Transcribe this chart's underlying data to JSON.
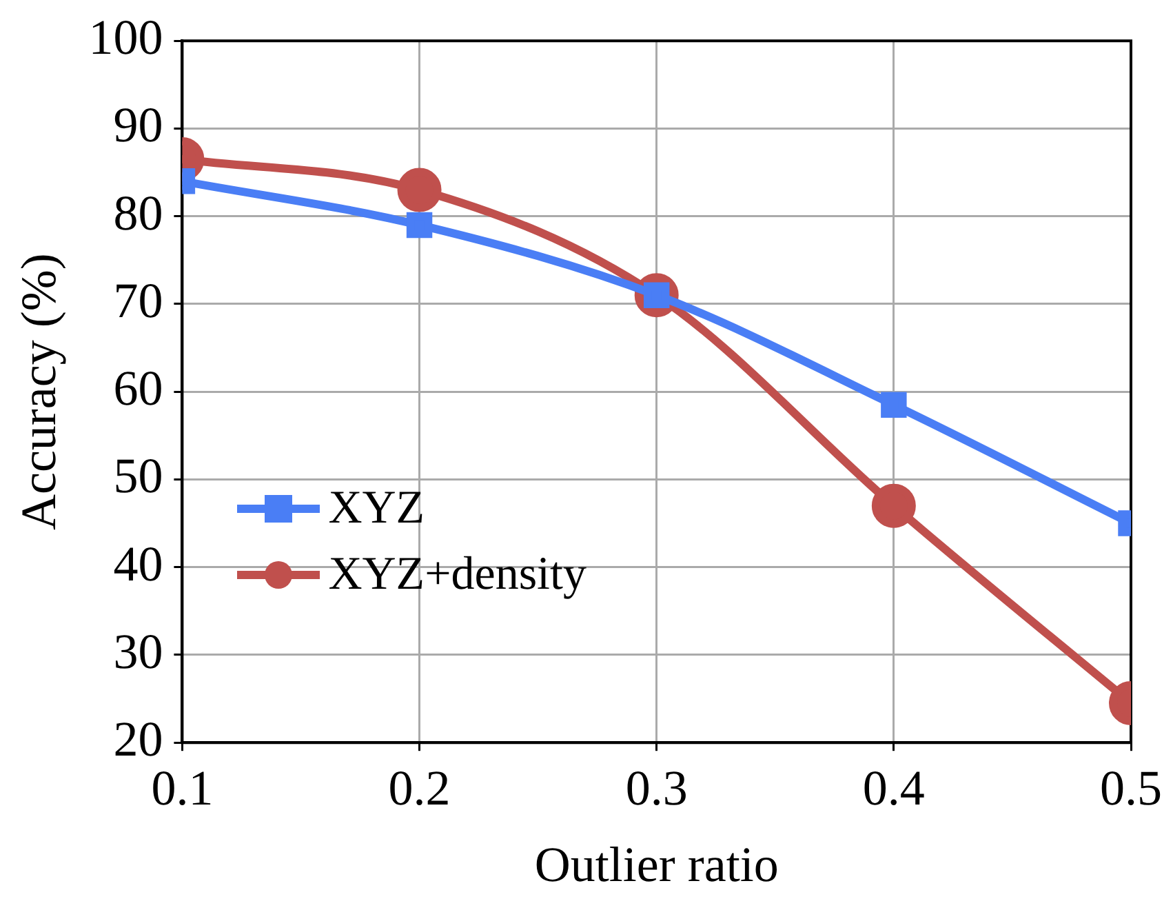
{
  "chart_data": {
    "type": "line",
    "xlabel": "Outlier ratio",
    "ylabel": "Accuracy (%)",
    "x": [
      0.1,
      0.2,
      0.3,
      0.4,
      0.5
    ],
    "series": [
      {
        "name": "XYZ",
        "color": "#4a7ef5",
        "marker": "square",
        "values": [
          84,
          79,
          71,
          58.5,
          45
        ]
      },
      {
        "name": "XYZ+density",
        "color": "#c0504d",
        "marker": "circle",
        "values": [
          86.5,
          83,
          71,
          47,
          24.5
        ]
      }
    ],
    "xlim": [
      0.1,
      0.5
    ],
    "xticks": [
      0.1,
      0.2,
      0.3,
      0.4,
      0.5
    ],
    "ylim": [
      20,
      100
    ],
    "yticks": [
      20,
      30,
      40,
      50,
      60,
      70,
      80,
      90,
      100
    ],
    "grid": true,
    "legend": "left"
  }
}
